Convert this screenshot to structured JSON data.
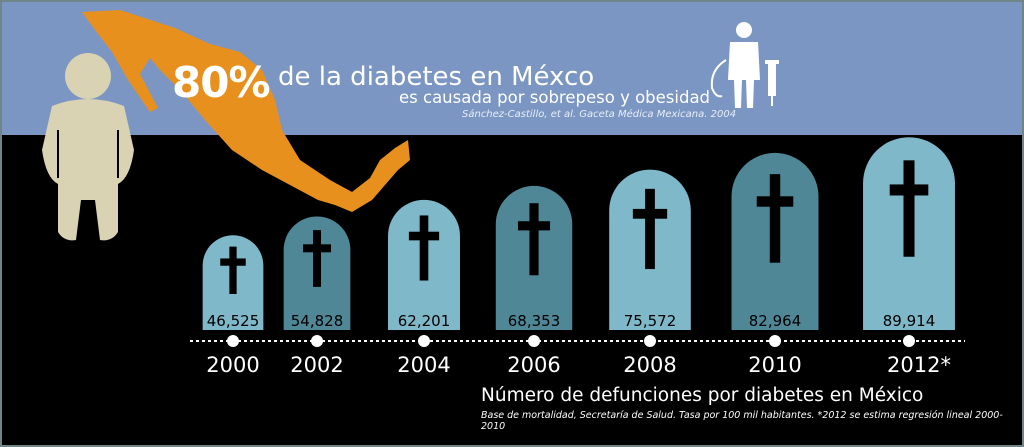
{
  "header": {
    "percent": "80%",
    "headline": "de la diabetes en Méxco",
    "subline": "es causada por sobrepeso y obesidad",
    "citation": "Sánchez-Castillo, et al. Gaceta Médica Mexicana. 2004"
  },
  "icons": [
    "mexico-map",
    "obese-person",
    "doctor-stethoscope-syringe",
    "tombstone-cross"
  ],
  "colors": {
    "band": "#7b96c3",
    "map": "#e8901e",
    "person": "#d9d3b4",
    "stone_light": "#7fb8c8",
    "stone_dark": "#4f8797"
  },
  "chart_data": {
    "type": "bar",
    "mark": "tombstone",
    "categories": [
      "2000",
      "2002",
      "2004",
      "2006",
      "2008",
      "2010",
      "2012*"
    ],
    "values": [
      46525,
      54828,
      62201,
      68353,
      75572,
      82964,
      89914
    ],
    "value_labels": [
      "46,525",
      "54,828",
      "62,201",
      "68,353",
      "75,572",
      "82,964",
      "89,914"
    ],
    "title": "Número de defunciones por diabetes en México",
    "note": "Base de mortalidad, Secretaría de Salud. Tasa por 100 mil habitantes. *2012 se estima regresión lineal 2000-2010"
  }
}
